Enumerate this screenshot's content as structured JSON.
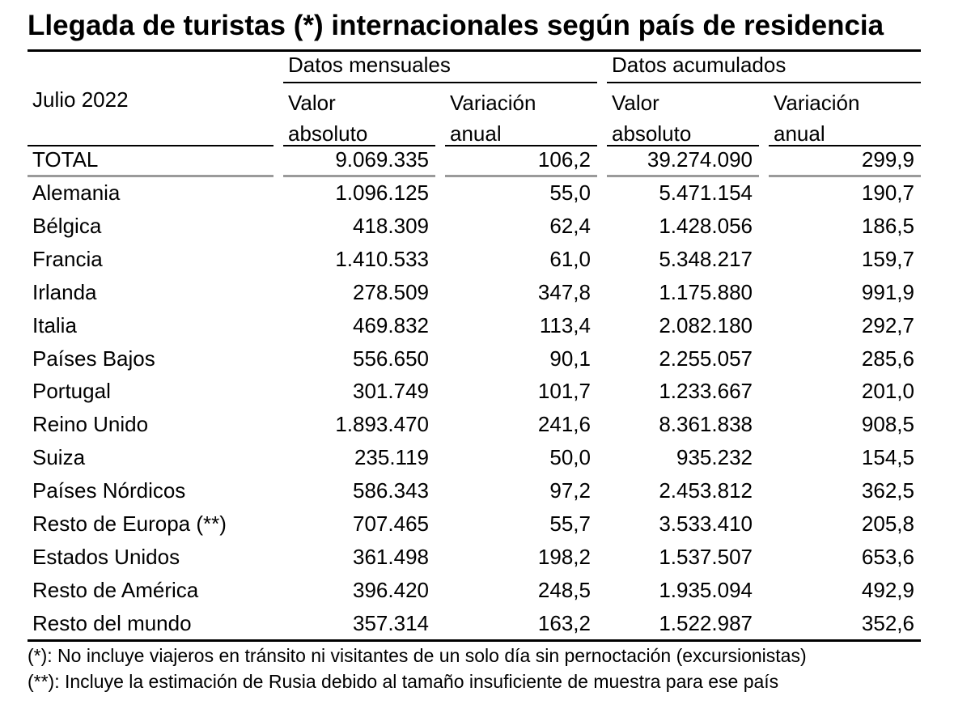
{
  "title": "Llegada de turistas (*) internacionales según país de residencia",
  "header": {
    "period": "Julio 2022",
    "group_monthly": "Datos mensuales",
    "group_cumulative": "Datos acumulados",
    "col_value_l1": "Valor",
    "col_value_l2": "absoluto",
    "col_var_l1": "Variación",
    "col_var_l2": "anual"
  },
  "total": {
    "label": "TOTAL",
    "m_abs": "9.069.335",
    "m_var": "106,2",
    "a_abs": "39.274.090",
    "a_var": "299,9"
  },
  "rows": [
    {
      "label": "Alemania",
      "m_abs": "1.096.125",
      "m_var": "55,0",
      "a_abs": "5.471.154",
      "a_var": "190,7"
    },
    {
      "label": "Bélgica",
      "m_abs": "418.309",
      "m_var": "62,4",
      "a_abs": "1.428.056",
      "a_var": "186,5"
    },
    {
      "label": "Francia",
      "m_abs": "1.410.533",
      "m_var": "61,0",
      "a_abs": "5.348.217",
      "a_var": "159,7"
    },
    {
      "label": "Irlanda",
      "m_abs": "278.509",
      "m_var": "347,8",
      "a_abs": "1.175.880",
      "a_var": "991,9"
    },
    {
      "label": "Italia",
      "m_abs": "469.832",
      "m_var": "113,4",
      "a_abs": "2.082.180",
      "a_var": "292,7"
    },
    {
      "label": "Países Bajos",
      "m_abs": "556.650",
      "m_var": "90,1",
      "a_abs": "2.255.057",
      "a_var": "285,6"
    },
    {
      "label": "Portugal",
      "m_abs": "301.749",
      "m_var": "101,7",
      "a_abs": "1.233.667",
      "a_var": "201,0"
    },
    {
      "label": "Reino Unido",
      "m_abs": "1.893.470",
      "m_var": "241,6",
      "a_abs": "8.361.838",
      "a_var": "908,5"
    },
    {
      "label": "Suiza",
      "m_abs": "235.119",
      "m_var": "50,0",
      "a_abs": "935.232",
      "a_var": "154,5"
    },
    {
      "label": "Países Nórdicos",
      "m_abs": "586.343",
      "m_var": "97,2",
      "a_abs": "2.453.812",
      "a_var": "362,5"
    },
    {
      "label": "Resto de Europa (**)",
      "m_abs": "707.465",
      "m_var": "55,7",
      "a_abs": "3.533.410",
      "a_var": "205,8"
    },
    {
      "label": "Estados Unidos",
      "m_abs": "361.498",
      "m_var": "198,2",
      "a_abs": "1.537.507",
      "a_var": "653,6"
    },
    {
      "label": "Resto de América",
      "m_abs": "396.420",
      "m_var": "248,5",
      "a_abs": "1.935.094",
      "a_var": "492,9"
    },
    {
      "label": "Resto del mundo",
      "m_abs": "357.314",
      "m_var": "163,2",
      "a_abs": "1.522.987",
      "a_var": "352,6"
    }
  ],
  "notes": [
    "(*): No incluye viajeros en tránsito ni visitantes de un solo día sin pernoctación (excursionistas)",
    "(**): Incluye la estimación de Rusia debido al tamaño insuficiente de muestra para ese país"
  ]
}
